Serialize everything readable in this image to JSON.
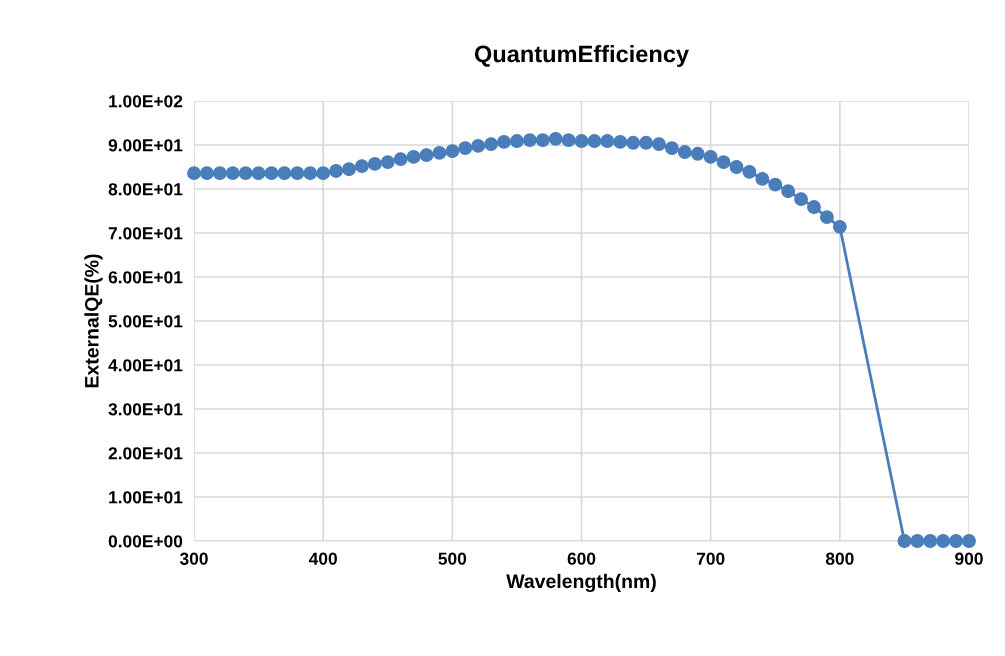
{
  "chart_data": {
    "type": "line",
    "title": "QuantumEfficiency",
    "xlabel": "Wavelength(nm)",
    "ylabel": "ExternalQE(%)",
    "x": [
      300,
      310,
      320,
      330,
      340,
      350,
      360,
      370,
      380,
      390,
      400,
      410,
      420,
      430,
      440,
      450,
      460,
      470,
      480,
      490,
      500,
      510,
      520,
      530,
      540,
      550,
      560,
      570,
      580,
      590,
      600,
      610,
      620,
      630,
      640,
      650,
      660,
      670,
      680,
      690,
      700,
      710,
      720,
      730,
      740,
      750,
      760,
      770,
      780,
      790,
      800,
      850,
      860,
      870,
      880,
      890,
      900
    ],
    "series": [
      {
        "color": "#4a7ebb",
        "values": [
          83.6,
          83.6,
          83.6,
          83.6,
          83.6,
          83.6,
          83.6,
          83.6,
          83.6,
          83.6,
          83.6,
          84.1,
          84.5,
          85.2,
          85.7,
          86.1,
          86.8,
          87.3,
          87.7,
          88.2,
          88.6,
          89.3,
          89.8,
          90.2,
          90.7,
          90.9,
          91.1,
          91.1,
          91.4,
          91.1,
          90.9,
          90.9,
          90.9,
          90.7,
          90.5,
          90.5,
          90.2,
          89.3,
          88.4,
          88.0,
          87.3,
          86.1,
          85.0,
          83.9,
          82.3,
          81.0,
          79.5,
          77.7,
          75.9,
          73.6,
          71.4,
          0,
          0,
          0,
          0,
          0,
          0
        ]
      }
    ],
    "xlim": [
      300,
      900
    ],
    "xticks": [
      300,
      400,
      500,
      600,
      700,
      800,
      900
    ],
    "ylim": [
      0,
      100
    ],
    "yticks": [
      {
        "value": 0,
        "label": "0.00E+00"
      },
      {
        "value": 10,
        "label": "1.00E+01"
      },
      {
        "value": 20,
        "label": "2.00E+01"
      },
      {
        "value": 30,
        "label": "3.00E+01"
      },
      {
        "value": 40,
        "label": "4.00E+01"
      },
      {
        "value": 50,
        "label": "5.00E+01"
      },
      {
        "value": 60,
        "label": "6.00E+01"
      },
      {
        "value": 70,
        "label": "7.00E+01"
      },
      {
        "value": 80,
        "label": "8.00E+01"
      },
      {
        "value": 90,
        "label": "9.00E+01"
      },
      {
        "value": 100,
        "label": "1.00E+02"
      }
    ],
    "grid": true,
    "marker": "circle",
    "line_style": "solid"
  }
}
